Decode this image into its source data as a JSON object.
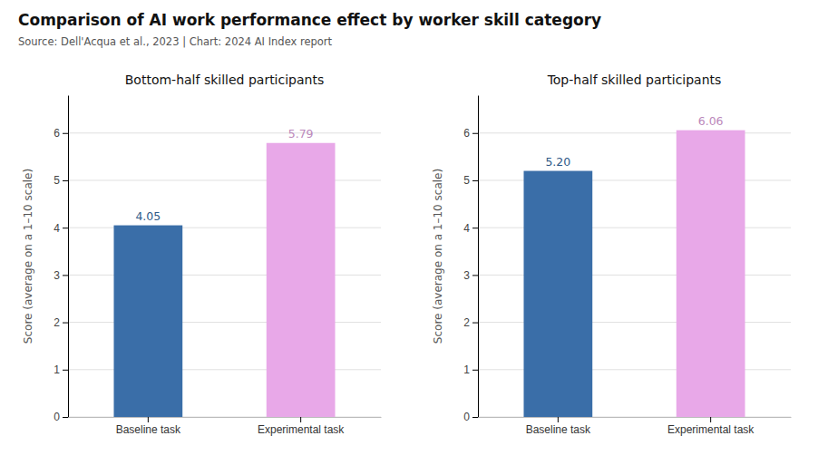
{
  "title": "Comparison of AI work performance effect by worker skill category",
  "subtitle": "Source: Dell'Acqua et al., 2023 | Chart: 2024 AI Index report",
  "chart_data": [
    {
      "type": "bar",
      "title": "Bottom-half skilled participants",
      "ylabel": "Score (average on a 1–10 scale)",
      "categories": [
        "Baseline task",
        "Experimental task"
      ],
      "values": [
        4.05,
        5.79
      ],
      "value_labels": [
        "4.05",
        "5.79"
      ],
      "colors": [
        "#3a6ea8",
        "#e8a8e8"
      ],
      "ylim": [
        0,
        6.8
      ],
      "yticks": [
        0,
        1,
        2,
        3,
        4,
        5,
        6
      ],
      "grid": true,
      "data_labels": true
    },
    {
      "type": "bar",
      "title": "Top-half skilled participants",
      "ylabel": "Score (average on a 1–10 scale)",
      "categories": [
        "Baseline task",
        "Experimental task"
      ],
      "values": [
        5.2,
        6.06
      ],
      "value_labels": [
        "5.20",
        "6.06"
      ],
      "colors": [
        "#3a6ea8",
        "#e8a8e8"
      ],
      "ylim": [
        0,
        6.8
      ],
      "yticks": [
        0,
        1,
        2,
        3,
        4,
        5,
        6
      ],
      "grid": true,
      "data_labels": true
    }
  ]
}
